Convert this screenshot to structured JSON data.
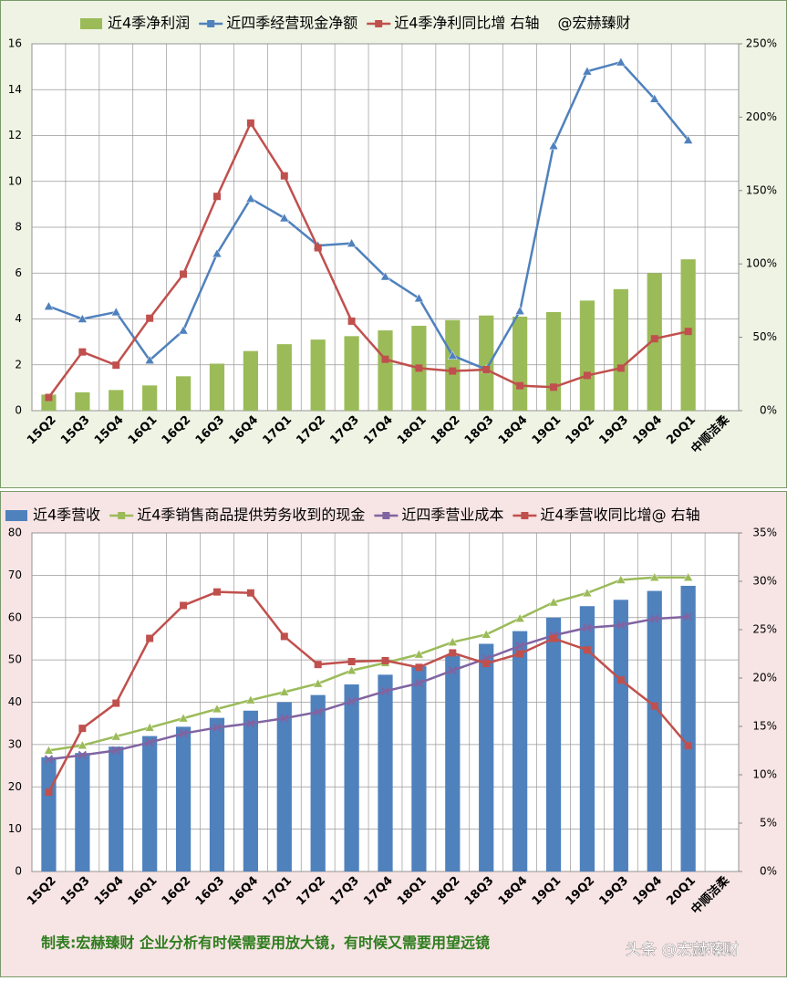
{
  "chart_data": [
    {
      "type": "bar",
      "categories": [
        "15Q2",
        "15Q3",
        "15Q4",
        "16Q1",
        "16Q2",
        "16Q3",
        "16Q4",
        "17Q1",
        "17Q2",
        "17Q3",
        "17Q4",
        "18Q1",
        "18Q2",
        "18Q3",
        "18Q4",
        "19Q1",
        "19Q2",
        "19Q3",
        "19Q4",
        "20Q1",
        "中顺洁柔"
      ],
      "series": [
        {
          "name": "近4季净利润",
          "type": "bar",
          "color": "#9bbb59",
          "values": [
            0.7,
            0.8,
            0.9,
            1.1,
            1.5,
            2.05,
            2.6,
            2.9,
            3.1,
            3.25,
            3.5,
            3.7,
            3.95,
            4.15,
            4.1,
            4.3,
            4.8,
            5.3,
            6.0,
            6.6,
            null
          ]
        },
        {
          "name": "近四季经营现金净额",
          "type": "line",
          "marker": "triangle",
          "color": "#4f81bd",
          "values": [
            4.55,
            4.0,
            4.3,
            2.2,
            3.5,
            6.85,
            9.25,
            8.4,
            7.2,
            7.3,
            5.85,
            4.9,
            2.4,
            1.8,
            4.35,
            11.55,
            14.8,
            15.2,
            13.6,
            11.8,
            null
          ]
        },
        {
          "name": "近4季净利同比增 右轴",
          "type": "line",
          "marker": "square",
          "axis": "y2",
          "color": "#c0504d",
          "values": [
            9,
            40,
            31,
            63,
            93,
            146,
            196,
            160,
            111,
            61,
            35,
            29,
            27,
            28,
            17,
            16,
            24,
            29,
            49,
            54,
            null
          ]
        }
      ],
      "annotation": "@宏赫臻财",
      "ylim": [
        0,
        16
      ],
      "yticks": [
        0,
        2,
        4,
        6,
        8,
        10,
        12,
        14,
        16
      ],
      "y2lim": [
        0,
        250
      ],
      "y2ticks": [
        {
          "value": 0,
          "label": "0%"
        },
        {
          "value": 50,
          "label": "50%"
        },
        {
          "value": 100,
          "label": "100%"
        },
        {
          "value": 150,
          "label": "150%"
        },
        {
          "value": 200,
          "label": "200%"
        },
        {
          "value": 250,
          "label": "250%"
        }
      ],
      "grid": true
    },
    {
      "type": "bar",
      "categories": [
        "15Q2",
        "15Q3",
        "15Q4",
        "16Q1",
        "16Q2",
        "16Q3",
        "16Q4",
        "17Q1",
        "17Q2",
        "17Q3",
        "17Q4",
        "18Q1",
        "18Q2",
        "18Q3",
        "18Q4",
        "19Q1",
        "19Q2",
        "19Q3",
        "19Q4",
        "20Q1",
        "中顺洁柔"
      ],
      "series": [
        {
          "name": "近4季营收",
          "type": "bar",
          "color": "#4f81bd",
          "values": [
            27,
            28,
            29.5,
            32,
            34.2,
            36.3,
            38,
            40,
            41.7,
            44.2,
            46.5,
            48.5,
            51,
            53.8,
            56.8,
            60,
            62.7,
            64.2,
            66.3,
            67.5,
            null
          ]
        },
        {
          "name": "近4季销售商品提供劳务收到的现金",
          "type": "line",
          "marker": "triangle",
          "color": "#9bbb59",
          "values": [
            28.6,
            29.8,
            31.9,
            34,
            36.2,
            38.4,
            40.5,
            42.4,
            44.4,
            47.5,
            49.3,
            51.3,
            54.2,
            56,
            59.8,
            63.6,
            65.8,
            68.9,
            69.5,
            69.5,
            null
          ]
        },
        {
          "name": "近四季营业成本",
          "type": "line",
          "marker": "x",
          "color": "#8064a2",
          "values": [
            26.5,
            27.5,
            28.6,
            30.5,
            32.6,
            34,
            35,
            36.2,
            37.7,
            40.2,
            42.6,
            44.5,
            47.5,
            50.3,
            53.3,
            55.8,
            57.6,
            58.2,
            59.7,
            60.2,
            null
          ]
        },
        {
          "name": "近4季营收同比增@ 右轴",
          "type": "line",
          "marker": "square",
          "axis": "y2",
          "color": "#c0504d",
          "values": [
            8.2,
            14.8,
            17.4,
            24.1,
            27.5,
            28.9,
            28.8,
            24.3,
            21.4,
            21.7,
            21.8,
            21.1,
            22.6,
            21.5,
            22.5,
            24.1,
            22.9,
            19.8,
            17.1,
            13.0,
            null
          ]
        }
      ],
      "footer": "制表:宏赫臻财    企业分析有时候需要用放大镜，有时候又需要用望远镜",
      "watermark": "头条 @宏赫臻财",
      "ylim": [
        0,
        80
      ],
      "yticks": [
        0,
        10,
        20,
        30,
        40,
        50,
        60,
        70,
        80
      ],
      "y2lim": [
        0,
        35
      ],
      "y2ticks": [
        {
          "value": 0,
          "label": "0%"
        },
        {
          "value": 5,
          "label": "5%"
        },
        {
          "value": 10,
          "label": "10%"
        },
        {
          "value": 15,
          "label": "15%"
        },
        {
          "value": 20,
          "label": "20%"
        },
        {
          "value": 25,
          "label": "25%"
        },
        {
          "value": 30,
          "label": "30%"
        },
        {
          "value": 35,
          "label": "35%"
        }
      ],
      "grid": true
    }
  ]
}
